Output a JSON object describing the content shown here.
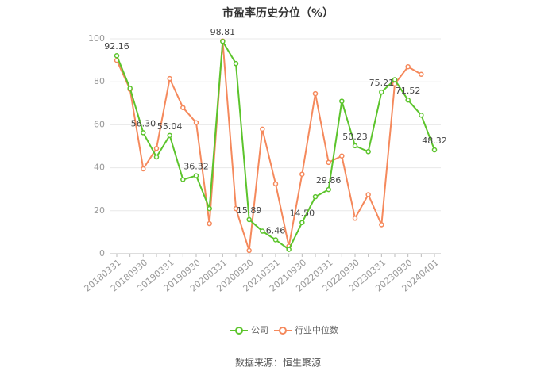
{
  "chart_data": {
    "type": "line",
    "title": "市盈率历史分位（%）",
    "categories": [
      "20180331",
      null,
      "20180930",
      null,
      "20190331",
      null,
      "20190930",
      null,
      "20200331",
      null,
      "20200930",
      null,
      "20210331",
      null,
      "20210930",
      null,
      "20220331",
      null,
      "20220930",
      null,
      "20230331",
      null,
      "20230930",
      null,
      "20240401"
    ],
    "series": [
      {
        "name": "公司",
        "color": "#5cc42c",
        "values": [
          92.16,
          77,
          56.3,
          45,
          55.04,
          34.5,
          36.32,
          21,
          98.81,
          88.5,
          15.89,
          10.5,
          6.46,
          2,
          14.5,
          26.5,
          29.86,
          71,
          50.23,
          47.5,
          75.21,
          81,
          71.52,
          64.5,
          48.32
        ],
        "value_labels": [
          "92.16",
          null,
          "56.30",
          null,
          "55.04",
          null,
          "36.32",
          null,
          "98.81",
          null,
          "15.89",
          null,
          "6.46",
          null,
          "14.50",
          null,
          "29.86",
          null,
          "50.23",
          null,
          "75.21",
          null,
          "71.52",
          null,
          "48.32"
        ]
      },
      {
        "name": "行业中位数",
        "color": "#f5895c",
        "values": [
          90,
          76.5,
          39.5,
          49,
          81.5,
          68,
          61,
          14,
          99,
          21,
          1.5,
          58,
          32.5,
          3.5,
          37,
          74.5,
          42.5,
          45.5,
          16.5,
          27.5,
          13.5,
          79,
          87,
          83.5,
          null
        ]
      }
    ],
    "ylim": [
      0,
      100
    ],
    "yticks": [
      0,
      20,
      40,
      60,
      80,
      100
    ],
    "grid": true,
    "legend": "bottom",
    "source": "数据来源：恒生聚源"
  }
}
